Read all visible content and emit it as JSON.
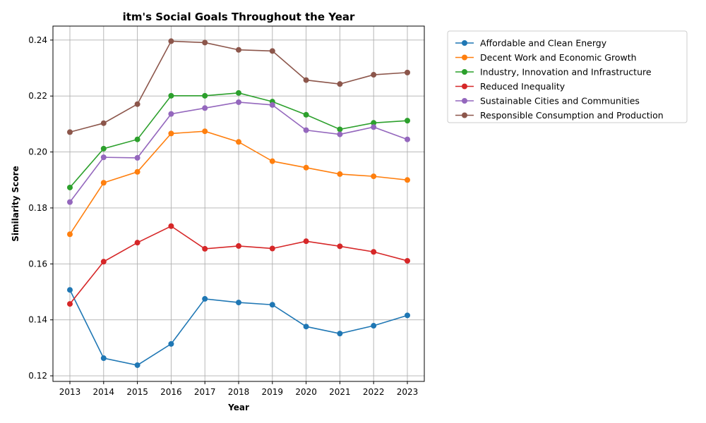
{
  "chart_data": {
    "type": "line",
    "title": "itm's Social Goals Throughout the Year",
    "xlabel": "Year",
    "ylabel": "Similarity Score",
    "x": [
      2013,
      2014,
      2015,
      2016,
      2017,
      2018,
      2019,
      2020,
      2021,
      2022,
      2023
    ],
    "xticks": [
      "2013",
      "2014",
      "2015",
      "2016",
      "2017",
      "2018",
      "2019",
      "2020",
      "2021",
      "2022",
      "2023"
    ],
    "ylim": [
      0.118,
      0.245
    ],
    "yticks": [
      "0.12",
      "0.14",
      "0.16",
      "0.18",
      "0.20",
      "0.22",
      "0.24"
    ],
    "grid": true,
    "legend_position": "outside-top-right",
    "series": [
      {
        "name": "Affordable and Clean Energy",
        "color": "#1f77b4",
        "values": [
          0.1507,
          0.1263,
          0.1238,
          0.1314,
          0.1475,
          0.1462,
          0.1454,
          0.1376,
          0.1351,
          0.1379,
          0.1416
        ]
      },
      {
        "name": "Decent Work and Economic Growth",
        "color": "#ff7f0e",
        "values": [
          0.1706,
          0.189,
          0.1929,
          0.2066,
          0.2074,
          0.2036,
          0.1967,
          0.1944,
          0.1921,
          0.1913,
          0.19
        ]
      },
      {
        "name": "Industry, Innovation and Infrastructure",
        "color": "#2ca02c",
        "values": [
          0.1873,
          0.2012,
          0.2045,
          0.2201,
          0.2201,
          0.2211,
          0.218,
          0.2133,
          0.2081,
          0.2104,
          0.2112
        ]
      },
      {
        "name": "Reduced Inequality",
        "color": "#d62728",
        "values": [
          0.1457,
          0.1608,
          0.1676,
          0.1735,
          0.1654,
          0.1664,
          0.1655,
          0.1681,
          0.1663,
          0.1643,
          0.1611
        ]
      },
      {
        "name": "Sustainable Cities and Communities",
        "color": "#9467bd",
        "values": [
          0.1821,
          0.1981,
          0.1979,
          0.2136,
          0.2157,
          0.2178,
          0.2168,
          0.2078,
          0.2063,
          0.2089,
          0.2045
        ]
      },
      {
        "name": "Responsible Consumption and Production",
        "color": "#8c564b",
        "values": [
          0.2071,
          0.2103,
          0.2171,
          0.2396,
          0.2391,
          0.2365,
          0.2361,
          0.2257,
          0.2243,
          0.2276,
          0.2284
        ]
      }
    ]
  }
}
